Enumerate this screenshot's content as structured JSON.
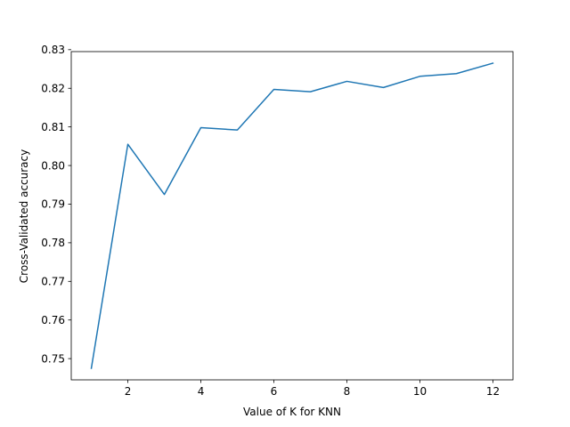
{
  "chart_data": {
    "type": "line",
    "title": "",
    "xlabel": "Value of K for KNN",
    "ylabel": "Cross-Validated accuracy",
    "xlim": [
      0.45,
      12.55
    ],
    "ylim": [
      0.7445,
      0.8295
    ],
    "x_ticks": [
      2,
      4,
      6,
      8,
      10,
      12
    ],
    "x_tick_labels": [
      "2",
      "4",
      "6",
      "8",
      "10",
      "12"
    ],
    "y_ticks": [
      0.75,
      0.76,
      0.77,
      0.78,
      0.79,
      0.8,
      0.81,
      0.82,
      0.83
    ],
    "y_tick_labels": [
      "0.75",
      "0.76",
      "0.77",
      "0.78",
      "0.79",
      "0.80",
      "0.81",
      "0.82",
      "0.83"
    ],
    "grid": false,
    "legend": "none",
    "series": [
      {
        "color": "#1f77b4",
        "x": [
          1,
          2,
          3,
          4,
          5,
          6,
          7,
          8,
          9,
          10,
          11,
          12
        ],
        "y": [
          0.7475,
          0.8055,
          0.7925,
          0.8098,
          0.8092,
          0.8197,
          0.8191,
          0.8218,
          0.8202,
          0.8231,
          0.8238,
          0.8265
        ]
      }
    ]
  }
}
